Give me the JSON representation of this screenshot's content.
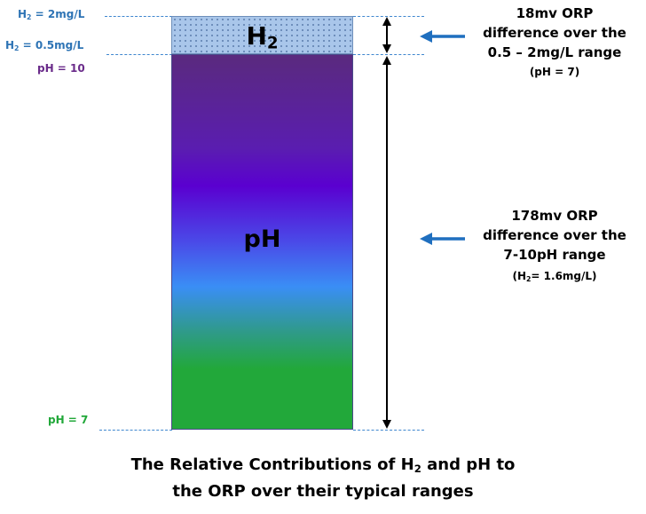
{
  "levels": {
    "h2_high": {
      "prefix": "H",
      "sub": "2",
      "suffix": " = 2mg/L"
    },
    "h2_low": {
      "prefix": "H",
      "sub": "2",
      "suffix": " = 0.5mg/L"
    },
    "ph_high": "pH = 10",
    "ph_low": "pH = 7"
  },
  "bars": {
    "h2_label": {
      "prefix": "H",
      "sub": "2"
    },
    "ph_label": "pH"
  },
  "annotations": {
    "h2": {
      "lines": [
        "18mv ORP",
        "difference over the",
        "0.5 – 2mg/L range"
      ],
      "condition": "(pH = 7)"
    },
    "ph": {
      "lines": [
        "178mv ORP",
        "difference over the",
        "7-10pH range"
      ],
      "condition": {
        "prefix": "(H",
        "sub": "2",
        "suffix": "= 1.6mg/L)"
      }
    }
  },
  "caption": {
    "line1_prefix": "The Relative Contributions of H",
    "line1_sub": "2",
    "line1_suffix": " and pH to",
    "line2": "the ORP over their typical ranges"
  },
  "colors": {
    "dash_line": "#3f87cf",
    "h2_label": "#2e74b5",
    "ph10_label": "#6a2b8a",
    "ph7_label": "#22a83a",
    "arrow_blue": "#1f6fbf"
  }
}
